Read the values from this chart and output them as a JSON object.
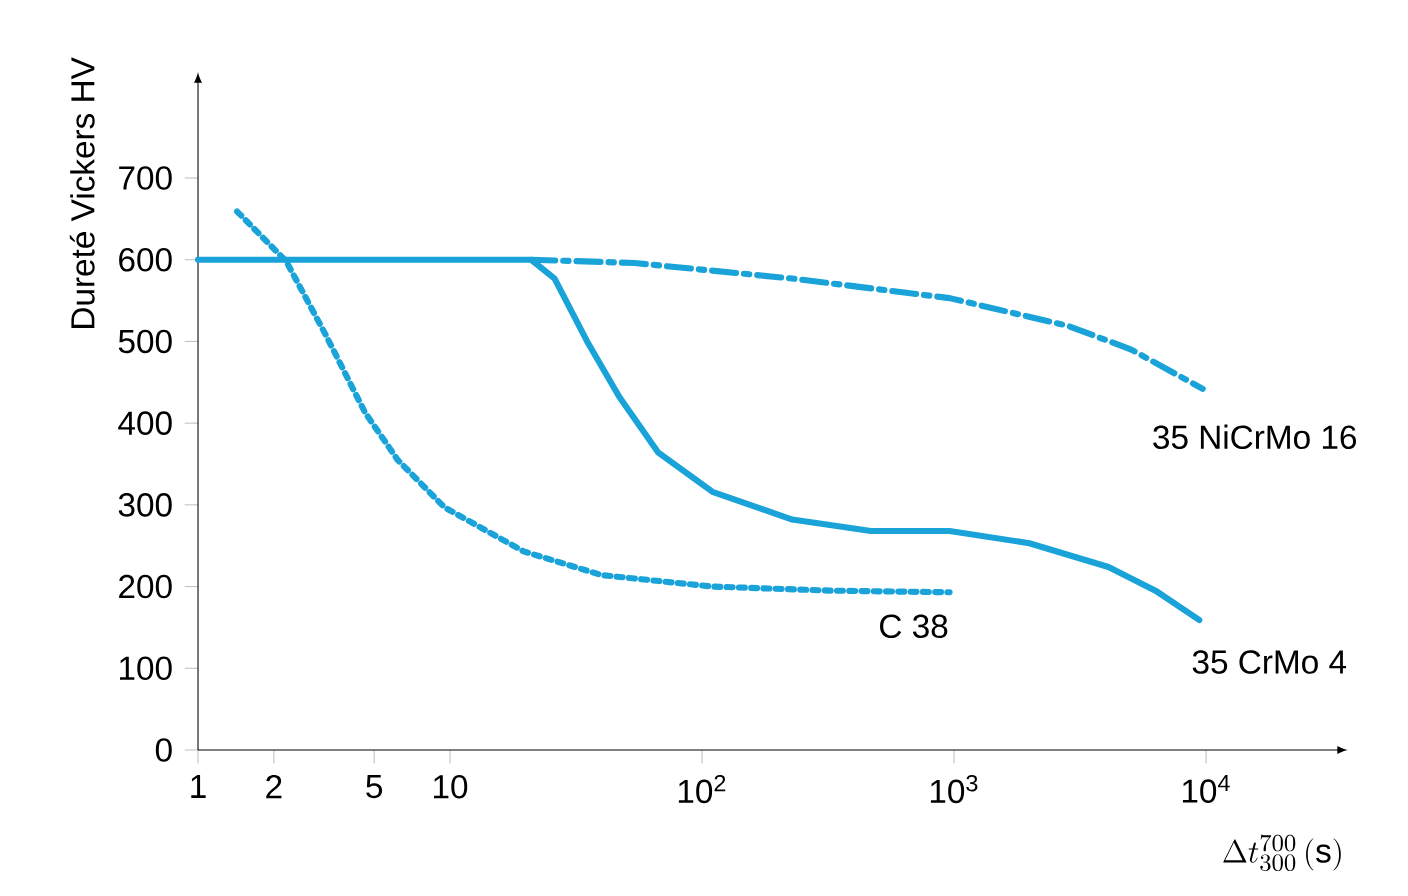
{
  "chart_data": {
    "type": "line",
    "xlabel": "\\Delta t_{300}^{700}\\,(\\mathrm{s})",
    "ylabel": "Dureté Vickers HV",
    "log": "x",
    "xlim": [
      1,
      34000
    ],
    "ylim": [
      0,
      820
    ],
    "xticks": [
      1,
      2,
      5,
      10,
      {
        "value": 100,
        "label": "10$^{2}$"
      },
      {
        "value": 1000,
        "label": "10$^{3}$"
      },
      {
        "value": 10000,
        "label": "10$^{4}$"
      }
    ],
    "yticks": [
      0,
      100,
      200,
      300,
      400,
      500,
      600,
      700
    ],
    "series": [
      {
        "name": "C 38",
        "color": "#1aa3d9",
        "line_style": "dotted",
        "x": [
          1.43,
          2.24,
          3.2,
          4.6,
          6.2,
          9.5,
          19.6,
          40,
          110,
          325,
          960
        ],
        "values": [
          659,
          598,
          509,
          413,
          355,
          297,
          243,
          214,
          200,
          195,
          193
        ]
      },
      {
        "name": "35 CrMo 4",
        "color": "#1aa3d9",
        "line_style": "solid",
        "x": [
          1,
          21,
          26,
          35,
          47,
          67,
          110,
          228,
          468,
          960,
          1990,
          4100,
          6300,
          9400
        ],
        "values": [
          600,
          600,
          577,
          500,
          432,
          364,
          316,
          282,
          268,
          268,
          253,
          224,
          195,
          159
        ]
      },
      {
        "name": "35 NiCrMo 16",
        "color": "#1aa3d9",
        "line_style": "dashdot",
        "x": [
          21,
          54,
          228,
          960,
          2840,
          5050,
          9700
        ],
        "values": [
          600,
          596,
          577,
          553,
          519,
          490,
          442
        ]
      }
    ]
  }
}
